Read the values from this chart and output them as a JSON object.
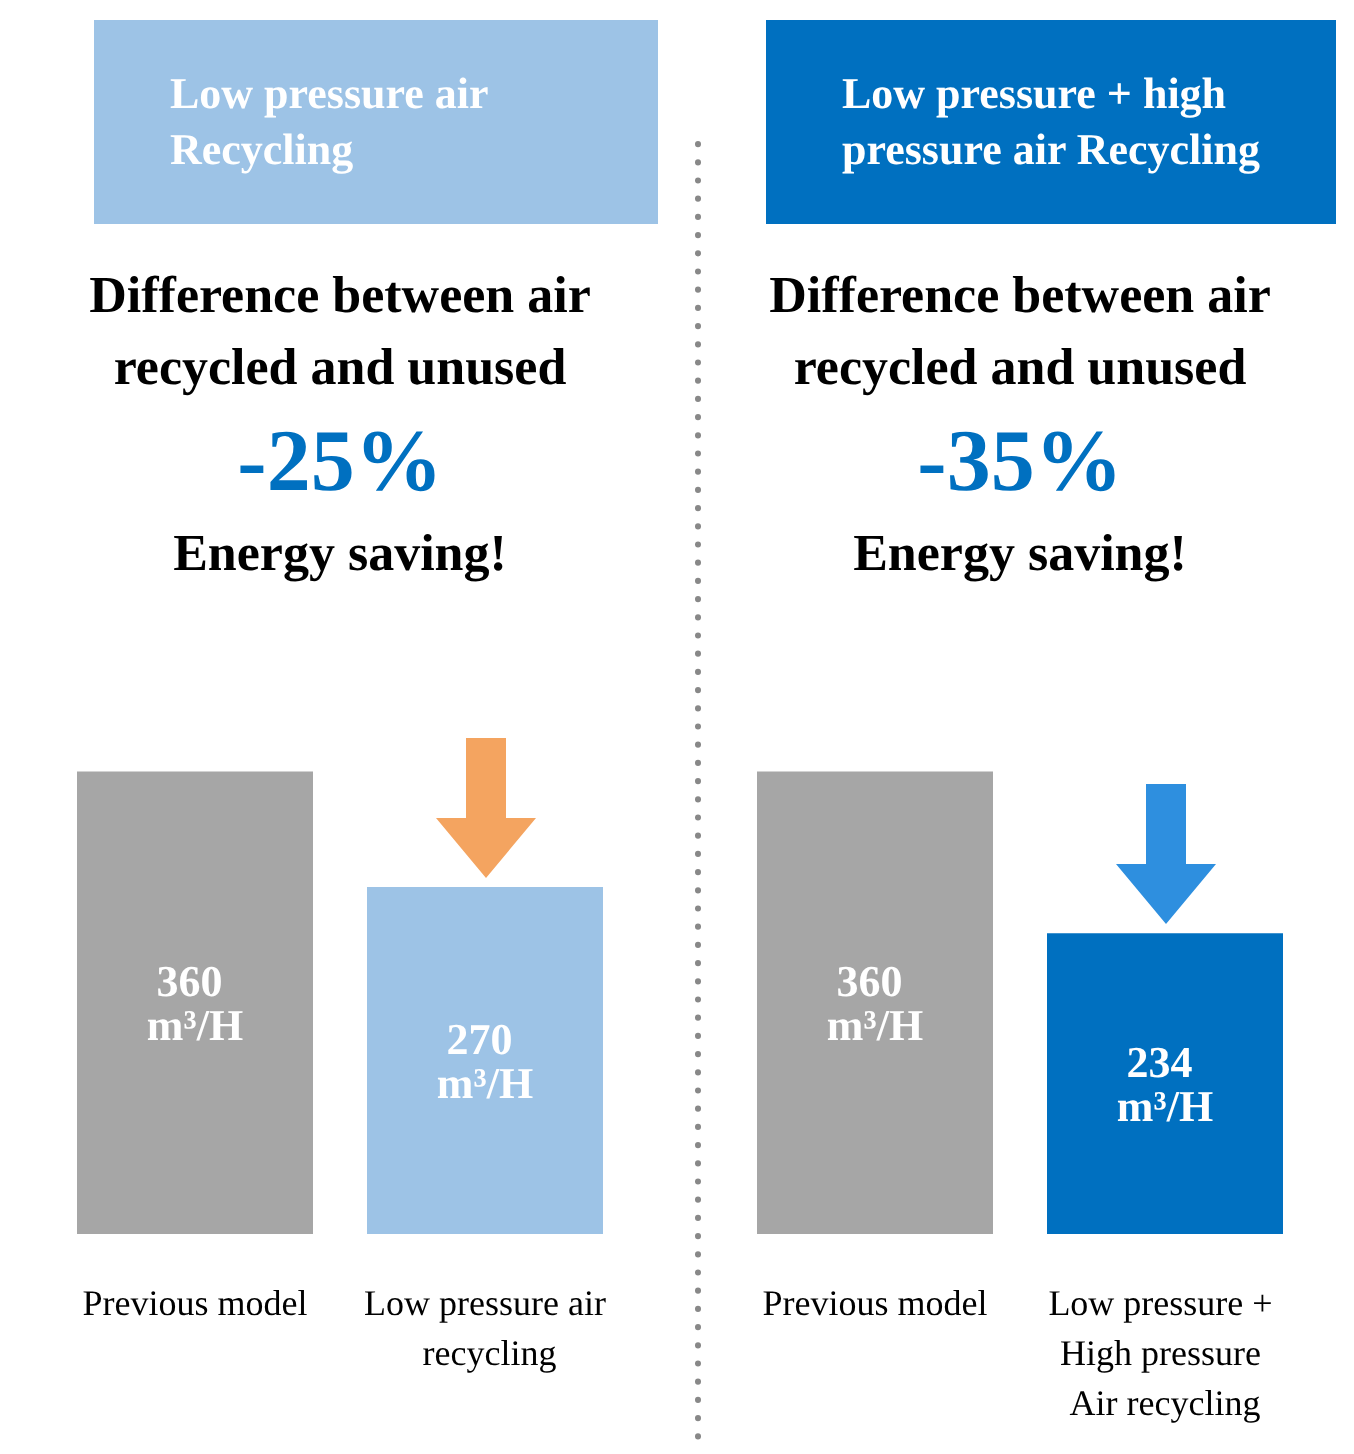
{
  "chart_data": [
    {
      "type": "bar",
      "title": "Low pressure air Recycling",
      "subtitle": "Difference between air recycled and unused",
      "annotations": [
        "-25%",
        "Energy saving!"
      ],
      "categories": [
        "Previous model",
        "Low pressure air recycling"
      ],
      "values": [
        360,
        270
      ],
      "colors": [
        "#a6a6a6",
        "#9dc3e6"
      ],
      "value_labels": [
        "360 m³/H",
        "270 m³/H"
      ]
    },
    {
      "type": "bar",
      "title": "Low pressure + high pressure air Recycling",
      "subtitle": "Difference between air recycled and unused",
      "annotations": [
        "-35%",
        "Energy saving!"
      ],
      "categories": [
        "Previous model",
        "Low pressure + High pressure Air recycling"
      ],
      "values": [
        360,
        234
      ],
      "colors": [
        "#a6a6a6",
        "#0070c0"
      ],
      "value_labels": [
        "360 m³/H",
        "234 m³/H"
      ]
    }
  ]
}
